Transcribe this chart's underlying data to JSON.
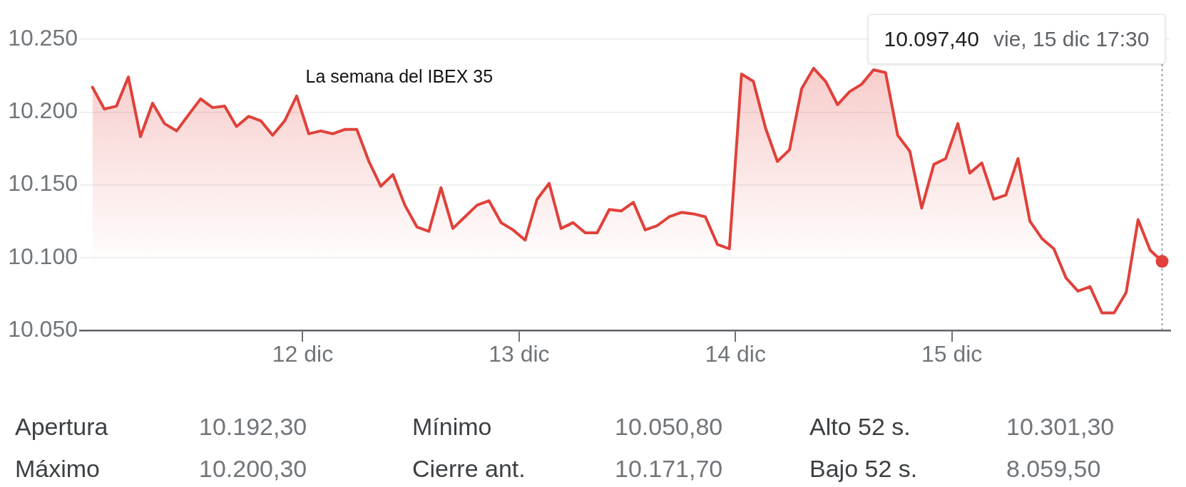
{
  "chart_data": {
    "type": "area",
    "title": "La semana del IBEX 35",
    "x": [
      11.028,
      11.083,
      11.139,
      11.194,
      11.25,
      11.306,
      11.361,
      11.417,
      11.472,
      11.528,
      11.583,
      11.639,
      11.694,
      11.75,
      11.806,
      11.861,
      11.917,
      11.972,
      12.028,
      12.083,
      12.139,
      12.194,
      12.25,
      12.306,
      12.361,
      12.417,
      12.472,
      12.528,
      12.583,
      12.639,
      12.694,
      12.75,
      12.806,
      12.861,
      12.917,
      12.972,
      13.028,
      13.083,
      13.139,
      13.194,
      13.25,
      13.306,
      13.361,
      13.417,
      13.472,
      13.528,
      13.583,
      13.639,
      13.694,
      13.75,
      13.806,
      13.861,
      13.917,
      13.972,
      14.028,
      14.083,
      14.139,
      14.194,
      14.25,
      14.306,
      14.361,
      14.417,
      14.472,
      14.528,
      14.583,
      14.639,
      14.694,
      14.75,
      14.806,
      14.861,
      14.917,
      14.972,
      15.028,
      15.083,
      15.139,
      15.194,
      15.25,
      15.306,
      15.361,
      15.417,
      15.472,
      15.528,
      15.583,
      15.639,
      15.694,
      15.75,
      15.806,
      15.861,
      15.917,
      15.972
    ],
    "series": [
      {
        "color": "#e0413a",
        "values": [
          10217,
          10202,
          10204,
          10224,
          10183,
          10206,
          10192,
          10187,
          10198,
          10209,
          10203,
          10204,
          10190,
          10197,
          10194,
          10184,
          10194,
          10211,
          10185,
          10187,
          10185,
          10188,
          10188,
          10166,
          10149,
          10157,
          10136,
          10121,
          10118,
          10148,
          10120,
          10128,
          10136,
          10139,
          10124,
          10119,
          10112,
          10140,
          10151,
          10120,
          10124,
          10117,
          10117,
          10133,
          10132,
          10138,
          10119,
          10122,
          10128,
          10131,
          10130,
          10128,
          10109,
          10106,
          10226,
          10221,
          10189,
          10166,
          10174,
          10216,
          10230,
          10221,
          10205,
          10214,
          10219,
          10229,
          10227,
          10184,
          10173,
          10134,
          10164,
          10168,
          10192,
          10158,
          10165,
          10140,
          10143,
          10168,
          10125,
          10113,
          10106,
          10086,
          10077,
          10080,
          10062,
          10062,
          10076,
          10126,
          10105,
          10097.4
        ]
      },
      {
        "type": "scatter",
        "color": "#e0413a",
        "marker": "circle",
        "x": [
          15.972
        ],
        "values": [
          10097.4
        ]
      }
    ],
    "xlim": [
      10.97,
      16.01
    ],
    "xticks": [
      {
        "value": 12,
        "label": "12 dic"
      },
      {
        "value": 13,
        "label": "13 dic"
      },
      {
        "value": 14,
        "label": "14 dic"
      },
      {
        "value": 15,
        "label": "15 dic"
      }
    ],
    "ylim": [
      10050,
      10250
    ],
    "yticks": [
      {
        "value": 10050,
        "label": "10.050"
      },
      {
        "value": 10100,
        "label": "10.100"
      },
      {
        "value": 10150,
        "label": "10.150"
      },
      {
        "value": 10200,
        "label": "10.200"
      },
      {
        "value": 10250,
        "label": "10.250"
      }
    ],
    "grid": "y",
    "ref_lines": [
      {
        "axis": "x",
        "value": 15.972,
        "color": "#8a8a8a",
        "line_style": "dotted"
      }
    ],
    "annotations": [
      "10.097,40",
      "vie, 15 dic 17:30",
      "Apertura",
      "10.192,30",
      "Mínimo",
      "10.050,80",
      "Alto 52 s.",
      "10.301,30",
      "Máximo",
      "10.200,30",
      "Cierre ant.",
      "10.171,70",
      "Bajo 52 s.",
      "8.059,50"
    ]
  }
}
